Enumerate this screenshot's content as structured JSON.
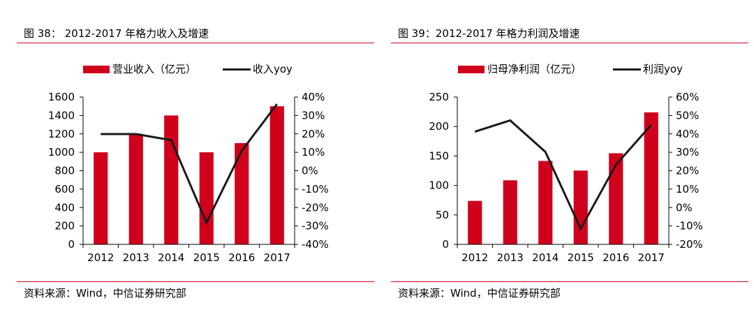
{
  "panels": [
    {
      "title": "图 38：  2012-2017 年格力收入及增速",
      "source": "资料来源：Wind，中信证券研究部",
      "legend": {
        "bar": "营业收入（亿元）",
        "line": "收入yoy"
      }
    },
    {
      "title": "图 39：2012-2017 年格力利润及增速",
      "source": "资料来源：Wind，中信证券研究部",
      "legend": {
        "bar": "归母净利润（亿元）",
        "line": "利润yoy"
      }
    }
  ],
  "chart_data": [
    {
      "type": "bar",
      "title": "图 38：  2012-2017 年格力收入及增速",
      "categories": [
        "2012",
        "2013",
        "2014",
        "2015",
        "2016",
        "2017"
      ],
      "series": [
        {
          "name": "营业收入（亿元）",
          "type": "bar",
          "axis": "left",
          "color": "#d0021b",
          "values": [
            1000,
            1200,
            1400,
            1000,
            1100,
            1500
          ]
        },
        {
          "name": "收入yoy",
          "type": "line",
          "axis": "right",
          "color": "#1a1a1a",
          "values": [
            19.9,
            19.9,
            16.6,
            -28.2,
            10.8,
            36.2
          ]
        }
      ],
      "ylim_left": [
        0,
        1600
      ],
      "ylim_right": [
        -40,
        40
      ],
      "yticks_left": [
        "0",
        "200",
        "400",
        "600",
        "800",
        "1000",
        "1200",
        "1400",
        "1600"
      ],
      "yticks_right": [
        "-40%",
        "-30%",
        "-20%",
        "-10%",
        "0%",
        "10%",
        "20%",
        "30%",
        "40%"
      ],
      "legend_position": "top",
      "grid": false
    },
    {
      "type": "bar",
      "title": "图 39：2012-2017 年格力利润及增速",
      "categories": [
        "2012",
        "2013",
        "2014",
        "2015",
        "2016",
        "2017"
      ],
      "series": [
        {
          "name": "归母净利润（亿元）",
          "type": "bar",
          "axis": "left",
          "color": "#d0021b",
          "values": [
            73.8,
            108.7,
            141.6,
            125.3,
            154.6,
            224.0
          ]
        },
        {
          "name": "利润yoy",
          "type": "line",
          "axis": "right",
          "color": "#1a1a1a",
          "values": [
            41.2,
            47.3,
            30.2,
            -11.5,
            23.2,
            44.9
          ]
        }
      ],
      "ylim_left": [
        0,
        250
      ],
      "ylim_right": [
        -20,
        60
      ],
      "yticks_left": [
        "0",
        "50",
        "100",
        "150",
        "200",
        "250"
      ],
      "yticks_right": [
        "-20%",
        "-10%",
        "0%",
        "10%",
        "20%",
        "30%",
        "40%",
        "50%",
        "60%"
      ],
      "legend_position": "top",
      "grid": false
    }
  ]
}
